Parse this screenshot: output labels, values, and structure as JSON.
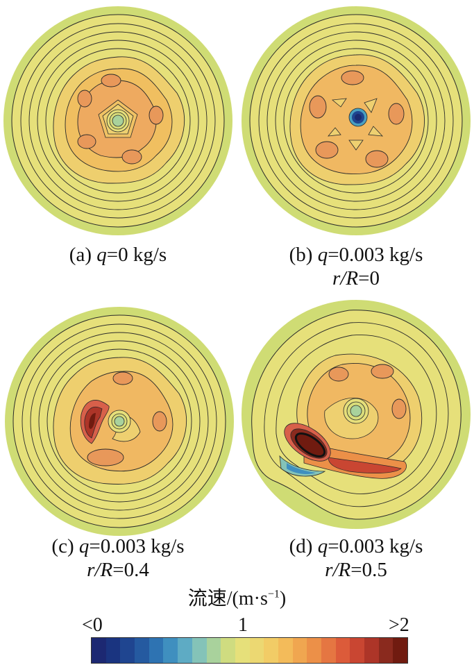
{
  "panels": [
    {
      "letter": "(a)",
      "q_label": "q",
      "q_rest": "=0 kg/s",
      "r_label": "",
      "r_rest": ""
    },
    {
      "letter": "(b)",
      "q_label": "q",
      "q_rest": "=0.003 kg/s",
      "r_label": "r/R",
      "r_rest": "=0"
    },
    {
      "letter": "(c)",
      "q_label": "q",
      "q_rest": "=0.003 kg/s",
      "r_label": "r/R",
      "r_rest": "=0.4"
    },
    {
      "letter": "(d)",
      "q_label": "q",
      "q_rest": "=0.003 kg/s",
      "r_label": "r/R",
      "r_rest": "=0.5"
    }
  ],
  "legend": {
    "title_main": "流速/(m·s",
    "title_sup": "−1",
    "title_close": ")",
    "tick_min": "<0",
    "tick_mid": "1",
    "tick_max": ">2"
  },
  "colors": {
    "outer_ring": "#cfdc74",
    "base": "#e6e07a",
    "mid": "#f0c060",
    "orange": "#eaa860",
    "high": "#d8604a",
    "max": "#701b10",
    "low": "#4aa0c0",
    "min": "#1a2a70",
    "colorbar": [
      "#1c2872",
      "#1a3480",
      "#1f4590",
      "#255aa0",
      "#2e73b2",
      "#3f8fbf",
      "#5eabc4",
      "#84c3b8",
      "#a9d29c",
      "#cfdc80",
      "#e6e07a",
      "#ecd872",
      "#f2cc66",
      "#f3bb5a",
      "#f0a650",
      "#ec9048",
      "#e57642",
      "#dc5b3a",
      "#c94632",
      "#ad3528",
      "#8a2a1e",
      "#701b10"
    ]
  }
}
